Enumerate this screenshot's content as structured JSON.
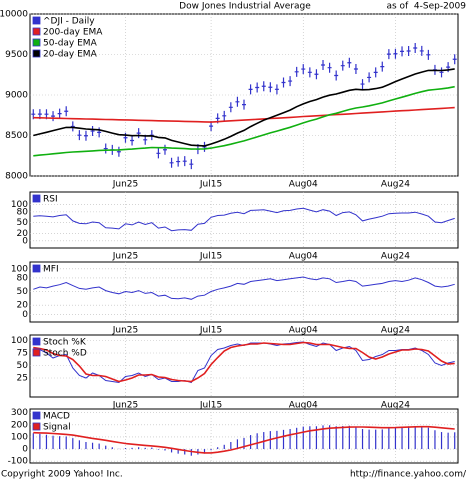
{
  "chart_data": [
    {
      "type": "line",
      "title": "Dow Jones Industrial Average",
      "subtitle": "as of  4-Sep-2009",
      "categories": [
        null,
        null,
        null,
        null,
        null,
        null,
        null,
        null,
        null,
        null,
        null,
        null,
        null,
        null,
        "Jun25",
        null,
        null,
        null,
        null,
        null,
        null,
        null,
        null,
        null,
        null,
        null,
        null,
        "Jul15",
        null,
        null,
        null,
        null,
        null,
        null,
        null,
        null,
        null,
        null,
        null,
        null,
        null,
        "Aug04",
        null,
        null,
        null,
        null,
        null,
        null,
        null,
        null,
        null,
        null,
        null,
        null,
        null,
        "Aug24",
        null,
        null,
        null,
        null,
        null,
        null,
        null,
        null,
        null
      ],
      "ylim": [
        8000,
        10000
      ],
      "yticks": [
        8000,
        8500,
        9000,
        9500,
        10000
      ],
      "grid": true,
      "series": [
        {
          "name": "^DJI - Daily",
          "color": "#3333cc",
          "marker": "plus",
          "values": [
            8763,
            8764,
            8763,
            8739,
            8770,
            8799,
            8612,
            8504,
            8497,
            8555,
            8539,
            8339,
            8323,
            8299,
            8472,
            8438,
            8529,
            8447,
            8504,
            8280,
            8324,
            8163,
            8178,
            8183,
            8146,
            8332,
            8359,
            8616,
            8711,
            8743,
            8848,
            8916,
            8881,
            9069,
            9093,
            9108,
            9096,
            9070,
            9154,
            9172,
            9286,
            9320,
            9280,
            9256,
            9370,
            9337,
            9241,
            9362,
            9398,
            9321,
            9135,
            9217,
            9279,
            9350,
            9505,
            9509,
            9539,
            9543,
            9580,
            9544,
            9496,
            9310,
            9280,
            9344,
            9441
          ]
        },
        {
          "name": "200-day EMA",
          "color": "#e02020",
          "values": [
            8720,
            8718,
            8716,
            8714,
            8712,
            8710,
            8708,
            8706,
            8704,
            8702,
            8700,
            8698,
            8696,
            8694,
            8692,
            8690,
            8688,
            8686,
            8684,
            8682,
            8680,
            8678,
            8676,
            8674,
            8672,
            8670,
            8668,
            8666,
            8670,
            8676,
            8681,
            8686,
            8690,
            8695,
            8700,
            8705,
            8710,
            8714,
            8719,
            8724,
            8729,
            8734,
            8738,
            8743,
            8748,
            8753,
            8758,
            8762,
            8767,
            8772,
            8777,
            8782,
            8786,
            8791,
            8796,
            8801,
            8806,
            8810,
            8815,
            8820,
            8825,
            8830,
            8834,
            8839,
            8844
          ]
        },
        {
          "name": "50-day EMA",
          "color": "#10b010",
          "values": [
            8250,
            8258,
            8266,
            8274,
            8282,
            8290,
            8296,
            8300,
            8305,
            8310,
            8316,
            8318,
            8320,
            8322,
            8328,
            8332,
            8340,
            8345,
            8352,
            8350,
            8350,
            8345,
            8342,
            8338,
            8332,
            8333,
            8334,
            8345,
            8359,
            8374,
            8393,
            8414,
            8433,
            8458,
            8483,
            8508,
            8532,
            8554,
            8578,
            8601,
            8628,
            8655,
            8680,
            8703,
            8730,
            8755,
            8774,
            8797,
            8821,
            8840,
            8852,
            8867,
            8884,
            8903,
            8927,
            8950,
            8973,
            8996,
            9020,
            9041,
            9059,
            9068,
            9077,
            9088,
            9102
          ]
        },
        {
          "name": "20-day EMA",
          "color": "#000000",
          "values": [
            8500,
            8520,
            8540,
            8560,
            8580,
            8600,
            8600,
            8590,
            8580,
            8575,
            8570,
            8550,
            8530,
            8510,
            8505,
            8498,
            8500,
            8495,
            8496,
            8477,
            8470,
            8440,
            8420,
            8400,
            8380,
            8375,
            8372,
            8395,
            8424,
            8453,
            8489,
            8530,
            8563,
            8610,
            8650,
            8690,
            8720,
            8750,
            8782,
            8814,
            8855,
            8890,
            8920,
            8943,
            8974,
            8998,
            9012,
            9035,
            9058,
            9070,
            9064,
            9067,
            9079,
            9096,
            9130,
            9165,
            9197,
            9228,
            9259,
            9283,
            9304,
            9304,
            9302,
            9310,
            9322
          ]
        }
      ]
    },
    {
      "type": "line",
      "ylim": [
        -20,
        135
      ],
      "yticks": [
        0,
        20,
        50,
        80,
        100
      ],
      "grid": true,
      "series": [
        {
          "name": "RSI",
          "color": "#3333cc",
          "values": [
            68,
            69,
            68,
            66,
            70,
            72,
            55,
            48,
            47,
            52,
            50,
            36,
            35,
            33,
            47,
            44,
            52,
            45,
            50,
            35,
            38,
            28,
            30,
            31,
            29,
            46,
            48,
            65,
            70,
            71,
            76,
            79,
            75,
            84,
            85,
            86,
            82,
            78,
            83,
            84,
            88,
            90,
            85,
            80,
            86,
            82,
            70,
            78,
            80,
            72,
            55,
            60,
            64,
            68,
            75,
            76,
            77,
            77,
            79,
            74,
            68,
            52,
            50,
            56,
            62
          ]
        }
      ]
    },
    {
      "type": "line",
      "ylim": [
        -17,
        115
      ],
      "yticks": [
        0,
        20,
        50,
        80,
        100
      ],
      "grid": true,
      "series": [
        {
          "name": "MFI",
          "color": "#3333cc",
          "values": [
            55,
            60,
            58,
            62,
            65,
            70,
            63,
            57,
            55,
            58,
            60,
            52,
            48,
            45,
            50,
            48,
            52,
            46,
            48,
            40,
            42,
            35,
            34,
            36,
            33,
            40,
            42,
            50,
            55,
            58,
            62,
            68,
            66,
            72,
            74,
            76,
            78,
            74,
            76,
            78,
            80,
            82,
            78,
            76,
            80,
            78,
            70,
            72,
            75,
            72,
            62,
            64,
            66,
            68,
            72,
            74,
            72,
            75,
            80,
            76,
            70,
            62,
            60,
            62,
            66
          ]
        }
      ]
    },
    {
      "type": "line",
      "ylim": [
        -13,
        111
      ],
      "yticks": [
        25,
        50,
        75,
        100
      ],
      "grid": true,
      "series": [
        {
          "name": "Stoch %K",
          "color": "#3333cc",
          "values": [
            85,
            82,
            75,
            65,
            70,
            72,
            45,
            30,
            25,
            35,
            30,
            20,
            18,
            16,
            28,
            30,
            35,
            28,
            32,
            22,
            25,
            18,
            18,
            20,
            16,
            40,
            45,
            70,
            82,
            85,
            90,
            93,
            90,
            95,
            95,
            95,
            93,
            90,
            93,
            94,
            96,
            97,
            92,
            88,
            95,
            92,
            80,
            85,
            88,
            80,
            60,
            62,
            68,
            72,
            80,
            80,
            82,
            82,
            85,
            80,
            72,
            55,
            50,
            55,
            58
          ]
        },
        {
          "name": "Stoch %D",
          "color": "#e02020",
          "values": [
            86,
            84,
            81,
            74,
            70,
            69,
            62,
            49,
            33,
            30,
            30,
            28,
            23,
            18,
            21,
            25,
            31,
            31,
            32,
            27,
            26,
            22,
            20,
            19,
            18,
            25,
            34,
            52,
            66,
            79,
            86,
            89,
            91,
            93,
            93,
            95,
            94,
            93,
            92,
            92,
            94,
            96,
            95,
            92,
            92,
            92,
            89,
            86,
            84,
            84,
            76,
            67,
            63,
            67,
            73,
            77,
            81,
            81,
            83,
            82,
            79,
            69,
            59,
            53,
            54
          ]
        }
      ]
    },
    {
      "type": "bar",
      "ylim": [
        -115,
        330
      ],
      "yticks": [
        -100,
        0,
        100,
        200,
        300
      ],
      "grid": true,
      "series": [
        {
          "name": "MACD",
          "color": "#3333cc",
          "kind": "bar",
          "values": [
            130,
            125,
            118,
            110,
            106,
            104,
            90,
            72,
            58,
            52,
            45,
            28,
            15,
            2,
            8,
            10,
            15,
            10,
            12,
            -5,
            -12,
            -28,
            -38,
            -45,
            -55,
            -45,
            -38,
            -10,
            15,
            35,
            58,
            80,
            92,
            115,
            130,
            140,
            148,
            150,
            158,
            165,
            175,
            185,
            188,
            188,
            195,
            196,
            188,
            190,
            192,
            185,
            165,
            160,
            160,
            162,
            175,
            180,
            185,
            187,
            190,
            185,
            176,
            155,
            140,
            135,
            138
          ]
        },
        {
          "name": "Signal",
          "color": "#e02020",
          "kind": "line",
          "values": [
            135,
            133,
            131,
            128,
            125,
            121,
            115,
            106,
            97,
            88,
            80,
            72,
            63,
            54,
            46,
            40,
            35,
            30,
            26,
            20,
            14,
            6,
            -3,
            -12,
            -20,
            -27,
            -32,
            -32,
            -26,
            -18,
            -8,
            5,
            20,
            34,
            49,
            64,
            79,
            92,
            105,
            117,
            128,
            140,
            150,
            158,
            166,
            172,
            175,
            178,
            181,
            182,
            182,
            180,
            178,
            176,
            176,
            177,
            179,
            181,
            183,
            184,
            184,
            180,
            175,
            170,
            165
          ]
        }
      ]
    }
  ],
  "footer": {
    "left": "Copyright 2009 Yahoo! Inc.",
    "right": "http://finance.yahoo.com/"
  }
}
